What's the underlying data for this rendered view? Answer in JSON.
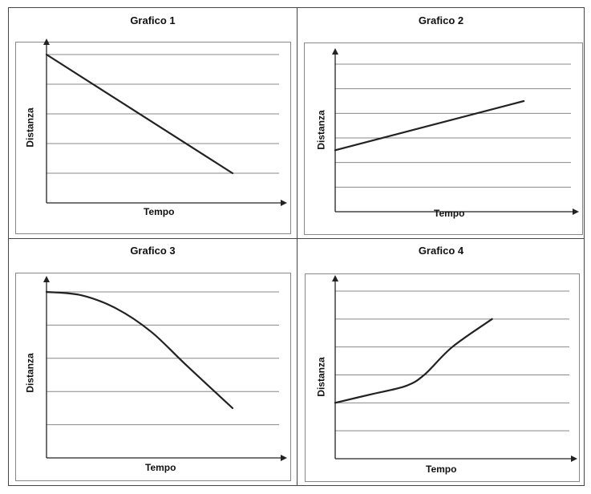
{
  "chart_data": [
    {
      "type": "line",
      "title": "Grafico 1",
      "xlabel": "Tempo",
      "ylabel": "Distanza",
      "grid": true,
      "ylim": [
        0,
        5
      ],
      "xlim": [
        0,
        1
      ],
      "series": [
        {
          "x": [
            0,
            0.8
          ],
          "y": [
            5,
            1
          ]
        }
      ]
    },
    {
      "type": "line",
      "title": "Grafico 2",
      "xlabel": "Tempo",
      "ylabel": "Distanza",
      "grid": true,
      "ylim": [
        0,
        6
      ],
      "xlim": [
        0,
        1
      ],
      "series": [
        {
          "x": [
            0,
            0.8
          ],
          "y": [
            2.5,
            4.5
          ]
        }
      ]
    },
    {
      "type": "line",
      "title": "Grafico 3",
      "xlabel": "Tempo",
      "ylabel": "Distanza",
      "grid": true,
      "ylim": [
        0,
        5
      ],
      "xlim": [
        0,
        1
      ],
      "series": [
        {
          "x": [
            0,
            0.15,
            0.3,
            0.45,
            0.6,
            0.8
          ],
          "y": [
            5,
            4.9,
            4.5,
            3.8,
            2.8,
            1.5
          ]
        }
      ]
    },
    {
      "type": "line",
      "title": "Grafico 4",
      "xlabel": "Tempo",
      "ylabel": "Distanza",
      "grid": true,
      "ylim": [
        0,
        6
      ],
      "xlim": [
        0,
        1
      ],
      "series": [
        {
          "x": [
            0,
            0.15,
            0.3,
            0.38,
            0.5,
            0.67
          ],
          "y": [
            2,
            2.3,
            2.6,
            3,
            4,
            5
          ]
        }
      ]
    }
  ]
}
